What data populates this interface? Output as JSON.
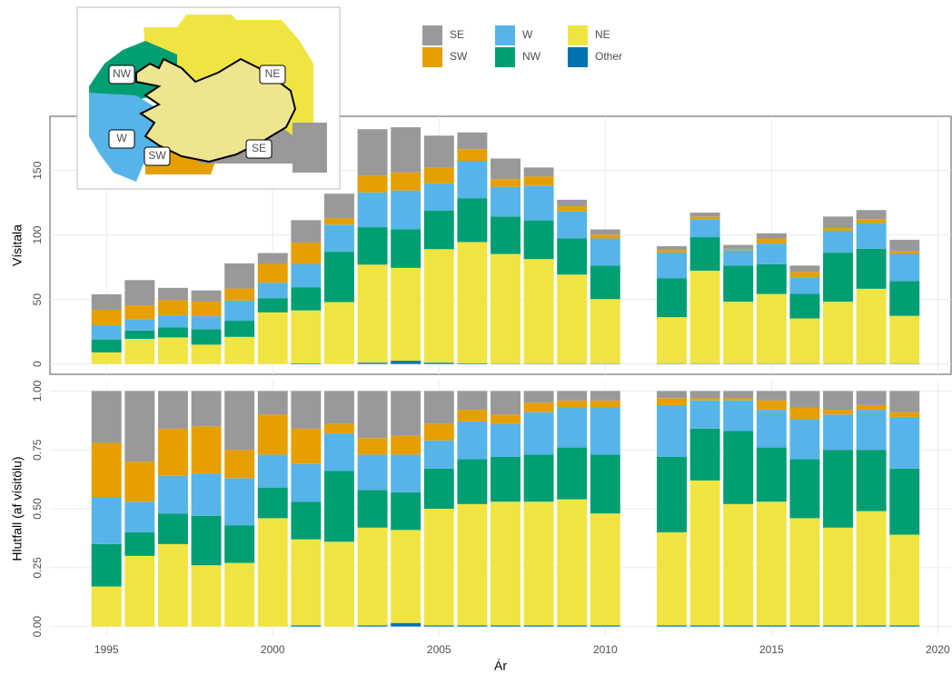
{
  "chart_data": [
    {
      "type": "bar",
      "stacked": true,
      "ylabel": "Vísitala",
      "x": [
        1995,
        1996,
        1997,
        1998,
        1999,
        2000,
        2001,
        2002,
        2003,
        2004,
        2005,
        2006,
        2007,
        2008,
        2009,
        2010,
        2012,
        2013,
        2014,
        2015,
        2016,
        2017,
        2018,
        2019
      ],
      "xlim": [
        1993.3,
        2020.4
      ],
      "xticks": [
        1995,
        2000,
        2005,
        2010,
        2015,
        2020
      ],
      "ylim": [
        -8,
        192
      ],
      "yticks": [
        0,
        50,
        100,
        150
      ],
      "grid": true,
      "series": [
        {
          "name": "Other",
          "color": "#0072B2",
          "values": [
            0,
            0,
            0,
            0,
            0,
            0,
            0.5,
            0,
            1,
            2.5,
            1,
            0.5,
            0.3,
            0.3,
            0.3,
            0.3,
            0.3,
            0.3,
            0.3,
            0.3,
            0.3,
            0.3,
            0.3,
            0.3
          ]
        },
        {
          "name": "NE",
          "color": "#F0E442",
          "values": [
            9,
            19.5,
            20.6,
            15,
            21,
            40,
            41,
            48,
            76,
            72,
            88,
            94,
            85,
            81,
            69,
            50,
            36,
            72,
            48,
            54,
            35,
            48,
            58,
            37
          ]
        },
        {
          "name": "NW",
          "color": "#009E73",
          "values": [
            10,
            6.5,
            7.7,
            12,
            12.5,
            11,
            18,
            39,
            29,
            30,
            30,
            34,
            29,
            30,
            28,
            26,
            30,
            26,
            28,
            23,
            19,
            38,
            31,
            27
          ]
        },
        {
          "name": "W",
          "color": "#56B4E9",
          "values": [
            11,
            8.5,
            9.4,
            10,
            15.6,
            12,
            18,
            21,
            27,
            30,
            21,
            29,
            23,
            27,
            21,
            21,
            20,
            14,
            12,
            16,
            13,
            17,
            20,
            21
          ]
        },
        {
          "name": "SW",
          "color": "#E69F00",
          "values": [
            12,
            11,
            11.8,
            11.4,
            9.4,
            14.6,
            16.6,
            5,
            13,
            14,
            12,
            9,
            6,
            7,
            4,
            3,
            2,
            2,
            1,
            4,
            4,
            2,
            3,
            2
          ]
        },
        {
          "name": "SE",
          "color": "#999999",
          "values": [
            12,
            19.5,
            9.5,
            8.6,
            19.5,
            8.4,
            17.4,
            19,
            36,
            35,
            25,
            13,
            16,
            7,
            5,
            4,
            3,
            3,
            3,
            4,
            5,
            9,
            7,
            9
          ]
        }
      ]
    },
    {
      "type": "bar",
      "stacked": true,
      "ylabel": "Hlutfall (af vísitölu)",
      "xlabel": "Ár",
      "x": [
        1995,
        1996,
        1997,
        1998,
        1999,
        2000,
        2001,
        2002,
        2003,
        2004,
        2005,
        2006,
        2007,
        2008,
        2009,
        2010,
        2012,
        2013,
        2014,
        2015,
        2016,
        2017,
        2018,
        2019
      ],
      "xlim": [
        1993.3,
        2020.4
      ],
      "xticks": [
        1995,
        2000,
        2005,
        2010,
        2015,
        2020
      ],
      "ylim": [
        -0.04,
        1.04
      ],
      "yticks": [
        {
          "value": 0,
          "label": "0.00"
        },
        {
          "value": 0.25,
          "label": "0.25"
        },
        {
          "value": 0.5,
          "label": "0.50"
        },
        {
          "value": 0.75,
          "label": "0.75"
        },
        {
          "value": 1,
          "label": "1.00"
        }
      ],
      "grid": true,
      "series": [
        {
          "name": "Other",
          "color": "#0072B2",
          "values": [
            0,
            0,
            0,
            0,
            0,
            0,
            0.005,
            0,
            0.005,
            0.015,
            0.005,
            0.005,
            0.005,
            0.005,
            0.005,
            0.005,
            0.005,
            0.005,
            0.005,
            0.005,
            0.005,
            0.005,
            0.005,
            0.005
          ]
        },
        {
          "name": "NE",
          "color": "#F0E442",
          "values": [
            0.17,
            0.3,
            0.35,
            0.26,
            0.27,
            0.46,
            0.365,
            0.36,
            0.415,
            0.395,
            0.495,
            0.515,
            0.525,
            0.525,
            0.535,
            0.475,
            0.395,
            0.615,
            0.515,
            0.525,
            0.455,
            0.415,
            0.485,
            0.385
          ]
        },
        {
          "name": "NW",
          "color": "#009E73",
          "values": [
            0.18,
            0.1,
            0.13,
            0.21,
            0.16,
            0.13,
            0.16,
            0.3,
            0.16,
            0.16,
            0.17,
            0.19,
            0.19,
            0.2,
            0.22,
            0.25,
            0.32,
            0.22,
            0.31,
            0.23,
            0.25,
            0.33,
            0.26,
            0.28
          ]
        },
        {
          "name": "W",
          "color": "#56B4E9",
          "values": [
            0.2,
            0.13,
            0.16,
            0.18,
            0.2,
            0.14,
            0.16,
            0.16,
            0.15,
            0.16,
            0.12,
            0.16,
            0.14,
            0.18,
            0.17,
            0.2,
            0.22,
            0.12,
            0.13,
            0.16,
            0.17,
            0.15,
            0.17,
            0.22
          ]
        },
        {
          "name": "SW",
          "color": "#E69F00",
          "values": [
            0.23,
            0.17,
            0.2,
            0.2,
            0.12,
            0.17,
            0.15,
            0.04,
            0.07,
            0.08,
            0.07,
            0.05,
            0.04,
            0.04,
            0.03,
            0.03,
            0.03,
            0.01,
            0.01,
            0.04,
            0.05,
            0.02,
            0.02,
            0.02
          ]
        },
        {
          "name": "SE",
          "color": "#999999",
          "values": [
            0.22,
            0.3,
            0.16,
            0.15,
            0.25,
            0.1,
            0.16,
            0.14,
            0.2,
            0.19,
            0.14,
            0.08,
            0.1,
            0.05,
            0.04,
            0.04,
            0.03,
            0.03,
            0.03,
            0.04,
            0.07,
            0.08,
            0.06,
            0.09
          ]
        }
      ]
    }
  ],
  "inset_map": {
    "labels": [
      "NW",
      "NE",
      "W",
      "SW",
      "SE"
    ]
  }
}
